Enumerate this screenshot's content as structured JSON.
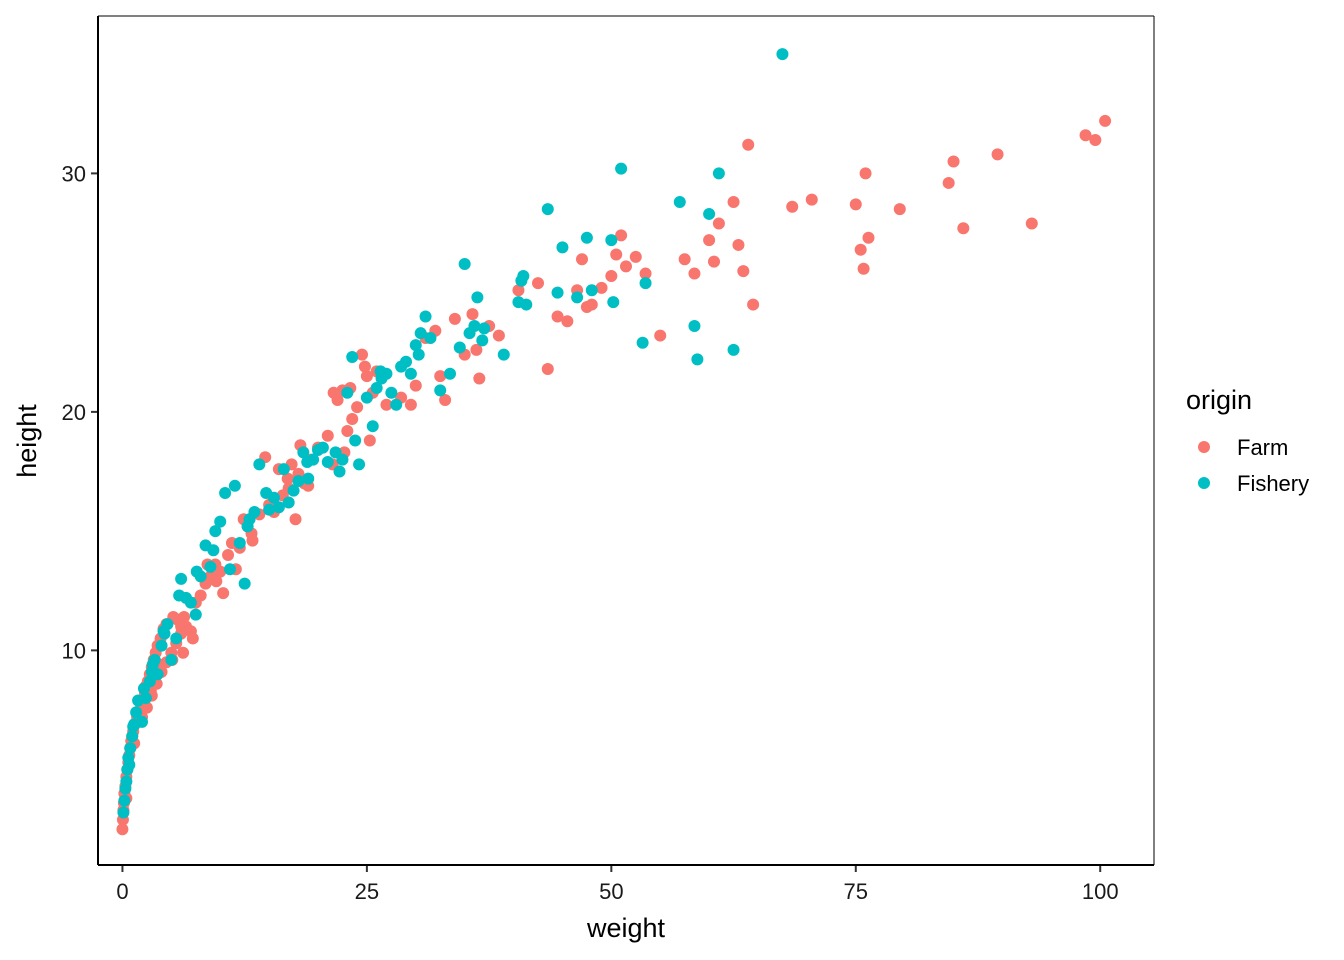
{
  "chart_data": {
    "type": "scatter",
    "title": "",
    "xlabel": "weight",
    "ylabel": "height",
    "xlim": [
      -2.5,
      105.5
    ],
    "ylim": [
      1.0,
      36.6
    ],
    "x_ticks": [
      0,
      25,
      50,
      75,
      100
    ],
    "y_ticks": [
      10,
      20,
      30
    ],
    "grid": false,
    "legend": {
      "title": "origin",
      "placement": "right"
    },
    "series": [
      {
        "name": "Farm",
        "color": "#F8766D",
        "points": [
          [
            0.0,
            2.5
          ],
          [
            0.05,
            2.9
          ],
          [
            0.1,
            3.3
          ],
          [
            0.15,
            3.6
          ],
          [
            0.2,
            4.0
          ],
          [
            0.3,
            4.3
          ],
          [
            0.4,
            4.7
          ],
          [
            0.5,
            5.0
          ],
          [
            0.6,
            5.3
          ],
          [
            0.7,
            5.6
          ],
          [
            0.8,
            5.9
          ],
          [
            0.9,
            6.2
          ],
          [
            1.0,
            6.4
          ],
          [
            1.1,
            6.6
          ],
          [
            1.3,
            6.9
          ],
          [
            1.5,
            7.2
          ],
          [
            1.7,
            7.4
          ],
          [
            1.9,
            7.6
          ],
          [
            2.1,
            7.9
          ],
          [
            2.3,
            8.2
          ],
          [
            2.4,
            8.5
          ],
          [
            2.6,
            8.7
          ],
          [
            2.8,
            9.0
          ],
          [
            3.0,
            9.3
          ],
          [
            3.2,
            9.6
          ],
          [
            3.4,
            9.9
          ],
          [
            3.6,
            10.2
          ],
          [
            3.9,
            10.5
          ],
          [
            4.2,
            10.9
          ],
          [
            4.5,
            11.1
          ],
          [
            2.0,
            7.2
          ],
          [
            2.5,
            7.6
          ],
          [
            3.0,
            8.1
          ],
          [
            3.5,
            8.6
          ],
          [
            4.0,
            9.1
          ],
          [
            4.5,
            9.5
          ],
          [
            5.0,
            9.9
          ],
          [
            5.5,
            10.3
          ],
          [
            6.0,
            10.7
          ],
          [
            6.5,
            11.0
          ],
          [
            5.2,
            11.4
          ],
          [
            5.6,
            11.3
          ],
          [
            6.0,
            11.0
          ],
          [
            6.3,
            11.4
          ],
          [
            7.0,
            10.8
          ],
          [
            7.5,
            12.0
          ],
          [
            8.0,
            12.3
          ],
          [
            8.5,
            12.8
          ],
          [
            9.0,
            13.1
          ],
          [
            9.5,
            13.6
          ],
          [
            10.0,
            13.3
          ],
          [
            10.3,
            12.4
          ],
          [
            10.8,
            14.0
          ],
          [
            11.2,
            14.5
          ],
          [
            12.0,
            14.3
          ],
          [
            12.4,
            15.5
          ],
          [
            12.8,
            15.2
          ],
          [
            13.3,
            14.6
          ],
          [
            14.0,
            15.7
          ],
          [
            14.6,
            18.1
          ],
          [
            15.0,
            16.1
          ],
          [
            15.5,
            15.8
          ],
          [
            16.0,
            17.6
          ],
          [
            16.4,
            16.5
          ],
          [
            16.9,
            17.2
          ],
          [
            17.3,
            17.8
          ],
          [
            17.7,
            15.5
          ],
          [
            18.2,
            18.6
          ],
          [
            18.6,
            17.0
          ],
          [
            19.3,
            18.0
          ],
          [
            20.0,
            18.5
          ],
          [
            21.0,
            19.0
          ],
          [
            21.6,
            20.8
          ],
          [
            22.0,
            20.5
          ],
          [
            22.5,
            20.9
          ],
          [
            23.0,
            19.2
          ],
          [
            23.5,
            19.7
          ],
          [
            24.0,
            20.2
          ],
          [
            24.5,
            22.4
          ],
          [
            25.0,
            21.5
          ],
          [
            25.3,
            18.8
          ],
          [
            25.6,
            20.8
          ],
          [
            26.0,
            21.7
          ],
          [
            27.0,
            20.3
          ],
          [
            28.5,
            20.6
          ],
          [
            29.5,
            20.3
          ],
          [
            30.0,
            21.1
          ],
          [
            31.0,
            23.1
          ],
          [
            32.0,
            23.4
          ],
          [
            32.5,
            21.5
          ],
          [
            33.0,
            20.5
          ],
          [
            34.0,
            23.9
          ],
          [
            35.0,
            22.4
          ],
          [
            35.8,
            24.1
          ],
          [
            36.2,
            22.6
          ],
          [
            36.5,
            21.4
          ],
          [
            37.5,
            23.6
          ],
          [
            38.5,
            23.2
          ],
          [
            40.5,
            25.1
          ],
          [
            42.5,
            25.4
          ],
          [
            43.5,
            21.8
          ],
          [
            44.5,
            24.0
          ],
          [
            45.5,
            23.8
          ],
          [
            46.5,
            25.1
          ],
          [
            47.0,
            26.4
          ],
          [
            47.5,
            24.4
          ],
          [
            48.0,
            24.5
          ],
          [
            49.0,
            25.2
          ],
          [
            50.0,
            25.7
          ],
          [
            50.5,
            26.6
          ],
          [
            51.0,
            27.4
          ],
          [
            51.5,
            26.1
          ],
          [
            52.5,
            26.5
          ],
          [
            53.5,
            25.8
          ],
          [
            55.0,
            23.2
          ],
          [
            57.5,
            26.4
          ],
          [
            58.5,
            25.8
          ],
          [
            60.0,
            27.2
          ],
          [
            60.5,
            26.3
          ],
          [
            61.0,
            27.9
          ],
          [
            62.5,
            28.8
          ],
          [
            63.0,
            27.0
          ],
          [
            63.5,
            25.9
          ],
          [
            64.0,
            31.2
          ],
          [
            64.5,
            24.5
          ],
          [
            68.5,
            28.6
          ],
          [
            70.5,
            28.9
          ],
          [
            75.0,
            28.7
          ],
          [
            75.5,
            26.8
          ],
          [
            75.8,
            26.0
          ],
          [
            76.0,
            30.0
          ],
          [
            76.3,
            27.3
          ],
          [
            79.5,
            28.5
          ],
          [
            84.5,
            29.6
          ],
          [
            85.0,
            30.5
          ],
          [
            86.0,
            27.7
          ],
          [
            89.5,
            30.8
          ],
          [
            93.0,
            27.9
          ],
          [
            98.5,
            31.6
          ],
          [
            99.5,
            31.4
          ],
          [
            100.5,
            32.2
          ],
          [
            17.0,
            16.8
          ],
          [
            18.0,
            17.4
          ],
          [
            19.0,
            16.9
          ],
          [
            21.5,
            17.8
          ],
          [
            22.7,
            18.3
          ],
          [
            8.7,
            13.6
          ],
          [
            9.6,
            12.9
          ],
          [
            11.6,
            13.4
          ],
          [
            13.2,
            14.9
          ],
          [
            5.1,
            9.6
          ],
          [
            6.2,
            9.9
          ],
          [
            7.2,
            10.5
          ],
          [
            3.8,
            9.4
          ],
          [
            2.9,
            8.3
          ],
          [
            1.6,
            7.0
          ],
          [
            1.2,
            6.1
          ],
          [
            0.4,
            3.8
          ],
          [
            23.3,
            21.0
          ],
          [
            24.8,
            21.9
          ]
        ]
      },
      {
        "name": "Fishery",
        "color": "#00BFC4",
        "points": [
          [
            0.1,
            3.2
          ],
          [
            0.2,
            3.7
          ],
          [
            0.3,
            4.2
          ],
          [
            0.4,
            4.5
          ],
          [
            0.5,
            5.0
          ],
          [
            0.6,
            5.5
          ],
          [
            0.8,
            5.9
          ],
          [
            1.0,
            6.4
          ],
          [
            1.2,
            6.9
          ],
          [
            1.4,
            7.4
          ],
          [
            1.6,
            7.9
          ],
          [
            2.0,
            7.0
          ],
          [
            2.4,
            8.0
          ],
          [
            2.8,
            8.7
          ],
          [
            3.0,
            9.1
          ],
          [
            3.3,
            9.6
          ],
          [
            3.6,
            9.0
          ],
          [
            4.0,
            10.2
          ],
          [
            4.3,
            10.7
          ],
          [
            4.6,
            11.1
          ],
          [
            5.0,
            9.6
          ],
          [
            5.5,
            10.5
          ],
          [
            6.0,
            13.0
          ],
          [
            6.5,
            12.2
          ],
          [
            7.0,
            12.0
          ],
          [
            7.5,
            11.5
          ],
          [
            8.0,
            13.1
          ],
          [
            8.5,
            14.4
          ],
          [
            9.0,
            13.5
          ],
          [
            9.5,
            15.0
          ],
          [
            10.0,
            15.4
          ],
          [
            10.5,
            16.6
          ],
          [
            11.0,
            13.4
          ],
          [
            11.5,
            16.9
          ],
          [
            12.0,
            14.5
          ],
          [
            12.5,
            12.8
          ],
          [
            13.0,
            15.5
          ],
          [
            13.5,
            15.8
          ],
          [
            14.0,
            17.8
          ],
          [
            14.7,
            16.6
          ],
          [
            15.5,
            16.4
          ],
          [
            16.0,
            16.0
          ],
          [
            16.5,
            17.6
          ],
          [
            17.0,
            16.2
          ],
          [
            17.5,
            16.7
          ],
          [
            18.0,
            17.1
          ],
          [
            18.5,
            18.3
          ],
          [
            19.0,
            17.2
          ],
          [
            19.5,
            18.0
          ],
          [
            20.0,
            18.4
          ],
          [
            20.5,
            18.5
          ],
          [
            21.0,
            17.9
          ],
          [
            21.8,
            18.3
          ],
          [
            22.5,
            18.0
          ],
          [
            23.0,
            20.8
          ],
          [
            23.5,
            22.3
          ],
          [
            23.8,
            18.8
          ],
          [
            24.2,
            17.8
          ],
          [
            25.0,
            20.6
          ],
          [
            25.6,
            19.4
          ],
          [
            26.0,
            21.0
          ],
          [
            26.5,
            21.4
          ],
          [
            27.0,
            21.6
          ],
          [
            27.5,
            20.8
          ],
          [
            28.0,
            20.3
          ],
          [
            28.5,
            21.9
          ],
          [
            29.0,
            22.1
          ],
          [
            29.5,
            21.6
          ],
          [
            30.0,
            22.8
          ],
          [
            30.3,
            22.4
          ],
          [
            30.5,
            23.3
          ],
          [
            31.0,
            24.0
          ],
          [
            31.5,
            23.1
          ],
          [
            32.5,
            20.9
          ],
          [
            33.5,
            21.6
          ],
          [
            34.5,
            22.7
          ],
          [
            35.0,
            26.2
          ],
          [
            35.5,
            23.3
          ],
          [
            36.0,
            23.6
          ],
          [
            36.3,
            24.8
          ],
          [
            37.0,
            23.5
          ],
          [
            39.0,
            22.4
          ],
          [
            40.5,
            24.6
          ],
          [
            40.8,
            25.5
          ],
          [
            41.0,
            25.7
          ],
          [
            41.3,
            24.5
          ],
          [
            43.5,
            28.5
          ],
          [
            44.5,
            25.0
          ],
          [
            45.0,
            26.9
          ],
          [
            46.5,
            24.8
          ],
          [
            47.5,
            27.3
          ],
          [
            48.0,
            25.1
          ],
          [
            50.0,
            27.2
          ],
          [
            50.2,
            24.6
          ],
          [
            51.0,
            30.2
          ],
          [
            53.2,
            22.9
          ],
          [
            53.5,
            25.4
          ],
          [
            57.0,
            28.8
          ],
          [
            58.5,
            23.6
          ],
          [
            58.8,
            22.2
          ],
          [
            60.0,
            28.3
          ],
          [
            61.0,
            30.0
          ],
          [
            62.5,
            22.6
          ],
          [
            67.5,
            35.0
          ],
          [
            15.0,
            15.9
          ],
          [
            12.8,
            15.2
          ],
          [
            9.3,
            14.2
          ],
          [
            7.6,
            13.3
          ],
          [
            5.8,
            12.3
          ],
          [
            4.2,
            10.8
          ],
          [
            3.1,
            9.4
          ],
          [
            2.2,
            8.4
          ],
          [
            1.1,
            6.8
          ],
          [
            0.7,
            5.2
          ],
          [
            22.2,
            17.5
          ],
          [
            18.9,
            17.9
          ],
          [
            26.4,
            21.7
          ],
          [
            36.8,
            23.0
          ]
        ]
      }
    ]
  }
}
